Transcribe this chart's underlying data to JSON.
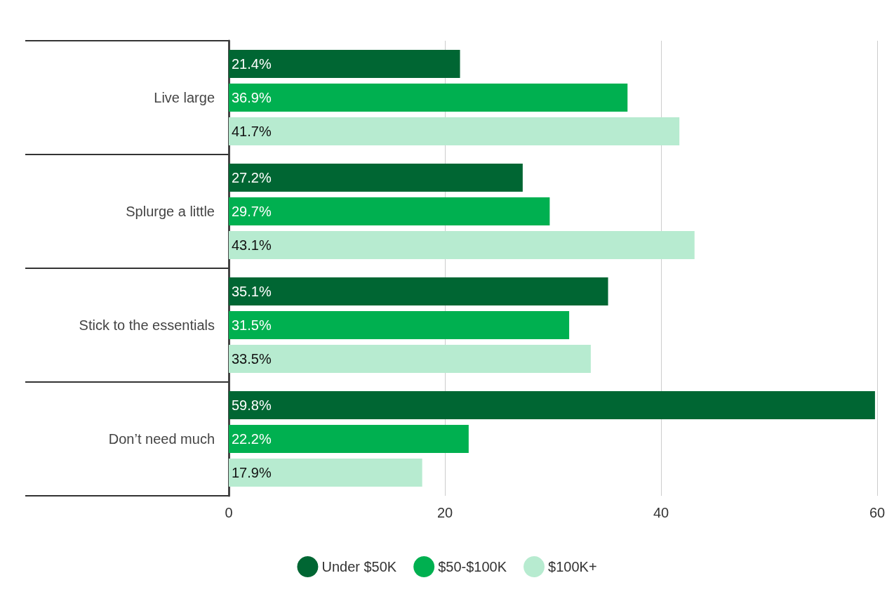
{
  "chart_data": {
    "type": "bar",
    "orientation": "horizontal",
    "categories": [
      "Live large",
      "Splurge a little",
      "Stick to the essentials",
      "Don’t need much"
    ],
    "series": [
      {
        "name": "Under $50K",
        "color": "#006633",
        "values": [
          21.4,
          27.2,
          35.1,
          59.8
        ],
        "value_labels": [
          "21.4%",
          "27.2%",
          "35.1%",
          "59.8%"
        ]
      },
      {
        "name": "$50-$100K",
        "color": "#00b050",
        "values": [
          36.9,
          29.7,
          31.5,
          22.2
        ],
        "value_labels": [
          "36.9%",
          "29.7%",
          "31.5%",
          "22.2%"
        ]
      },
      {
        "name": "$100K+",
        "color": "#b7ebd0",
        "values": [
          41.7,
          43.1,
          33.5,
          17.9
        ],
        "value_labels": [
          "41.7%",
          "43.1%",
          "33.5%",
          "17.9%"
        ]
      }
    ],
    "xlim": [
      0,
      60
    ],
    "xticks": [
      0,
      20,
      40,
      60
    ],
    "grid": "x",
    "legend": "bottom"
  }
}
